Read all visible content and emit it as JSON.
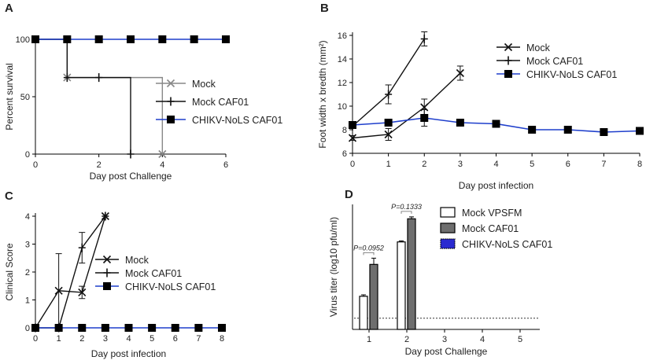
{
  "chart_data": [
    {
      "panel": "A",
      "type": "line",
      "xlabel": "Day post Challenge",
      "ylabel": "Percent survival",
      "xlim": [
        0,
        6
      ],
      "ylim": [
        0,
        100
      ],
      "xticks": [
        0,
        2,
        4,
        6
      ],
      "yticks": [
        0,
        50,
        100
      ],
      "step": true,
      "series": [
        {
          "name": "Mock",
          "marker": "x",
          "color": "#888888",
          "x": [
            0,
            1,
            4
          ],
          "values": [
            100,
            66.7,
            0
          ]
        },
        {
          "name": "Mock CAF01",
          "marker": "plus",
          "color": "#111111",
          "x": [
            0,
            1,
            2,
            3
          ],
          "values": [
            100,
            66.7,
            66.7,
            0
          ]
        },
        {
          "name": "CHIKV-NoLS CAF01",
          "marker": "square",
          "color": "#1f3fcc",
          "x": [
            0,
            1,
            2,
            3,
            4,
            5,
            6
          ],
          "values": [
            100,
            100,
            100,
            100,
            100,
            100,
            100
          ]
        }
      ],
      "legend": "right"
    },
    {
      "panel": "B",
      "type": "line",
      "xlabel": "Day post infection",
      "ylabel": "Foot width x bredth (mm²)",
      "xlim": [
        0,
        8
      ],
      "ylim": [
        6,
        16
      ],
      "xticks": [
        0,
        1,
        2,
        3,
        4,
        5,
        6,
        7,
        8
      ],
      "yticks": [
        6,
        8,
        10,
        12,
        14,
        16
      ],
      "series": [
        {
          "name": "Mock",
          "marker": "x",
          "color": "#111111",
          "x": [
            0,
            1,
            2,
            3
          ],
          "values": [
            7.3,
            7.6,
            9.9,
            12.8
          ],
          "err": [
            0.2,
            0.5,
            0.7,
            0.6
          ]
        },
        {
          "name": "Mock CAF01",
          "marker": "plus",
          "color": "#111111",
          "x": [
            0,
            1,
            2
          ],
          "values": [
            8.3,
            11.0,
            15.7
          ],
          "err": [
            0.2,
            0.8,
            0.6
          ]
        },
        {
          "name": "CHIKV-NoLS CAF01",
          "marker": "square",
          "color": "#1f3fcc",
          "x": [
            0,
            1,
            2,
            3,
            4,
            5,
            6,
            7,
            8
          ],
          "values": [
            8.4,
            8.6,
            9.0,
            8.6,
            8.5,
            8.0,
            8.0,
            7.8,
            7.9
          ],
          "err": [
            0.1,
            0.2,
            0.7,
            0.2,
            0.2,
            0.1,
            0.1,
            0.2,
            0.1
          ]
        }
      ],
      "legend": "top-right"
    },
    {
      "panel": "C",
      "type": "line",
      "xlabel": "Day post infection",
      "ylabel": "Clinical Score",
      "xlim": [
        0,
        8
      ],
      "ylim": [
        0,
        4
      ],
      "xticks": [
        0,
        1,
        2,
        3,
        4,
        5,
        6,
        7,
        8
      ],
      "yticks": [
        0,
        1,
        2,
        3,
        4
      ],
      "series": [
        {
          "name": "Mock",
          "marker": "x",
          "color": "#111111",
          "x": [
            0,
            1,
            2,
            3
          ],
          "values": [
            0,
            1.33,
            1.27,
            4
          ],
          "err": [
            0,
            1.33,
            0.22,
            0
          ]
        },
        {
          "name": "Mock CAF01",
          "marker": "plus",
          "color": "#111111",
          "x": [
            0,
            1,
            2,
            3
          ],
          "values": [
            0,
            0,
            2.87,
            4
          ],
          "err": [
            0,
            0,
            0.55,
            0
          ]
        },
        {
          "name": "CHIKV-NoLS CAF01",
          "marker": "square",
          "color": "#1f3fcc",
          "x": [
            0,
            1,
            2,
            3,
            4,
            5,
            6,
            7,
            8
          ],
          "values": [
            0,
            0,
            0,
            0,
            0,
            0,
            0,
            0,
            0
          ]
        }
      ],
      "legend": "right"
    },
    {
      "panel": "D",
      "type": "bar",
      "xlabel": "Day post Challenge",
      "ylabel": "Virus titer (log10 pfu/ml)",
      "categories": [
        "1",
        "2",
        "3",
        "4",
        "5"
      ],
      "ylim": [
        0,
        10
      ],
      "series": [
        {
          "name": "Mock VPSFM",
          "fill": "#ffffff",
          "values": [
            2.65,
            7.0,
            null,
            null,
            null
          ],
          "err": [
            0.12,
            0.08,
            null,
            null,
            null
          ]
        },
        {
          "name": "Mock CAF01",
          "fill": "#6e6e6e",
          "values": [
            5.2,
            8.85,
            null,
            null,
            null
          ],
          "err": [
            0.5,
            0.15,
            null,
            null,
            null
          ]
        },
        {
          "name": "CHIKV-NoLS CAF01",
          "fill": "#2a2ad0",
          "values": [
            null,
            null,
            null,
            null,
            null
          ]
        }
      ],
      "detection_limit": 0.9,
      "annotations": [
        {
          "category": "1",
          "text": "P=0.0952"
        },
        {
          "category": "2",
          "text": "P=0.1333"
        }
      ],
      "legend": "top-right"
    }
  ]
}
